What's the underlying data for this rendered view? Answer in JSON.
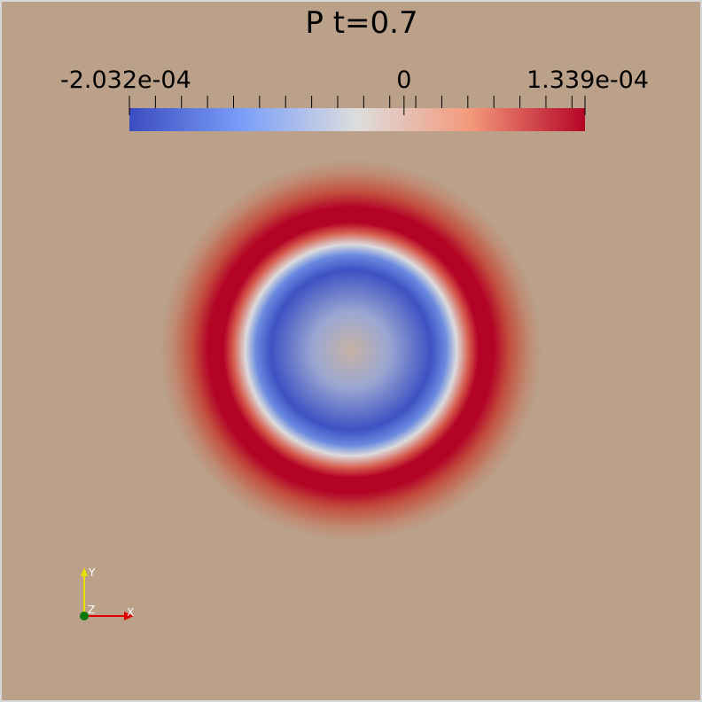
{
  "title": "P  t=0.7",
  "colorbar": {
    "min": -0.0002032,
    "max": 0.0001339,
    "ticks": [
      {
        "value": -0.0002032,
        "label": "-2.032e-04"
      },
      0,
      {
        "value": 0.0001339,
        "label": "1.339e-04"
      }
    ]
  },
  "axes": {
    "x": "X",
    "y": "Y",
    "z": "Z"
  }
}
